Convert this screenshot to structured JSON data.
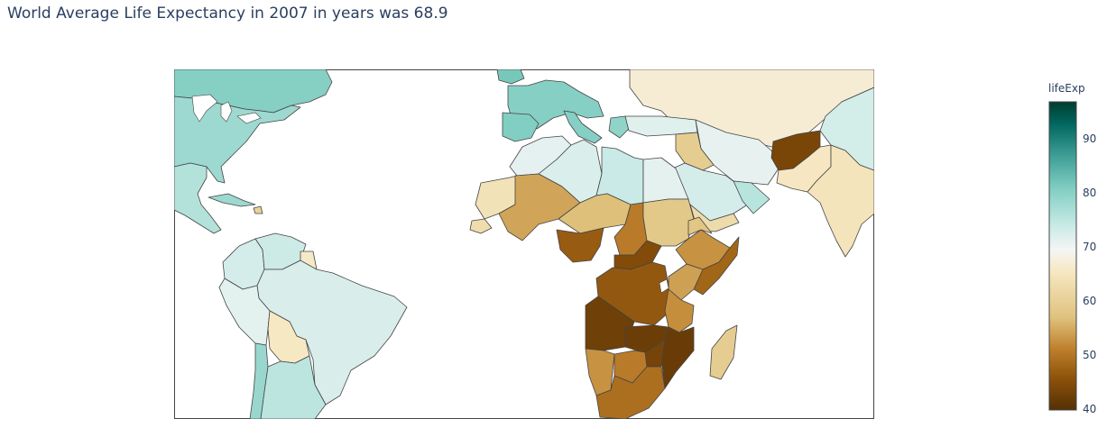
{
  "title": "World Average Life Expectancy in 2007 in years was 68.9",
  "colorbar": {
    "title": "lifeExp",
    "min": 40,
    "max": 97,
    "ticks": [
      "40",
      "50",
      "60",
      "70",
      "80",
      "90"
    ],
    "tick_values": [
      40,
      50,
      60,
      70,
      80,
      90
    ],
    "scale": [
      "#543005",
      "#8c510a",
      "#bf812d",
      "#dfc27d",
      "#f6e8c3",
      "#f5f5f5",
      "#c7eae5",
      "#80cdc1",
      "#35978f",
      "#01665e",
      "#003c30"
    ]
  },
  "chart_data": {
    "type": "choropleth",
    "value_key": "lifeExp",
    "regions": [
      {
        "name": "Canada",
        "value": 80.6
      },
      {
        "name": "United States",
        "value": 78.2
      },
      {
        "name": "Mexico",
        "value": 76.2
      },
      {
        "name": "Cuba",
        "value": 78.3
      },
      {
        "name": "Haiti",
        "value": 60.9
      },
      {
        "name": "Colombia",
        "value": 72.9
      },
      {
        "name": "Venezuela",
        "value": 73.7
      },
      {
        "name": "Guyana",
        "value": 66.0
      },
      {
        "name": "Brazil",
        "value": 72.4
      },
      {
        "name": "Peru",
        "value": 71.4
      },
      {
        "name": "Bolivia",
        "value": 65.6
      },
      {
        "name": "Chile",
        "value": 78.6
      },
      {
        "name": "Argentina",
        "value": 75.3
      },
      {
        "name": "Russia",
        "value": 67.0
      },
      {
        "name": "Western Europe",
        "value": 80.5
      },
      {
        "name": "Iceland",
        "value": 81.8
      },
      {
        "name": "Spain",
        "value": 80.9
      },
      {
        "name": "Italy",
        "value": 80.5
      },
      {
        "name": "Greece",
        "value": 79.5
      },
      {
        "name": "Turkey",
        "value": 71.8
      },
      {
        "name": "Iran",
        "value": 71.0
      },
      {
        "name": "Iraq",
        "value": 59.5
      },
      {
        "name": "Saudi Arabia",
        "value": 72.8
      },
      {
        "name": "Yemen",
        "value": 62.7
      },
      {
        "name": "Oman",
        "value": 75.6
      },
      {
        "name": "Afghanistan",
        "value": 43.8
      },
      {
        "name": "Pakistan",
        "value": 65.5
      },
      {
        "name": "India",
        "value": 64.7
      },
      {
        "name": "China",
        "value": 73.0
      },
      {
        "name": "Morocco",
        "value": 71.2
      },
      {
        "name": "Algeria",
        "value": 72.3
      },
      {
        "name": "Libya",
        "value": 74.0
      },
      {
        "name": "Egypt",
        "value": 71.3
      },
      {
        "name": "Mauritania",
        "value": 64.2
      },
      {
        "name": "Mali",
        "value": 54.5
      },
      {
        "name": "Niger",
        "value": 56.9
      },
      {
        "name": "Chad",
        "value": 50.7
      },
      {
        "name": "Sudan",
        "value": 58.6
      },
      {
        "name": "Senegal",
        "value": 63.1
      },
      {
        "name": "Nigeria",
        "value": 46.9
      },
      {
        "name": "Ethiopia",
        "value": 52.9
      },
      {
        "name": "Somalia",
        "value": 48.2
      },
      {
        "name": "Eritrea",
        "value": 58.0
      },
      {
        "name": "Central African Republic",
        "value": 44.7
      },
      {
        "name": "Democratic Republic of Congo",
        "value": 46.5
      },
      {
        "name": "Kenya",
        "value": 54.1
      },
      {
        "name": "Tanzania",
        "value": 52.5
      },
      {
        "name": "Angola",
        "value": 42.7
      },
      {
        "name": "Zambia",
        "value": 42.4
      },
      {
        "name": "Mozambique",
        "value": 42.1
      },
      {
        "name": "Zimbabwe",
        "value": 43.5
      },
      {
        "name": "Namibia",
        "value": 52.9
      },
      {
        "name": "Botswana",
        "value": 50.7
      },
      {
        "name": "South Africa",
        "value": 49.3
      },
      {
        "name": "Madagascar",
        "value": 59.4
      }
    ]
  }
}
